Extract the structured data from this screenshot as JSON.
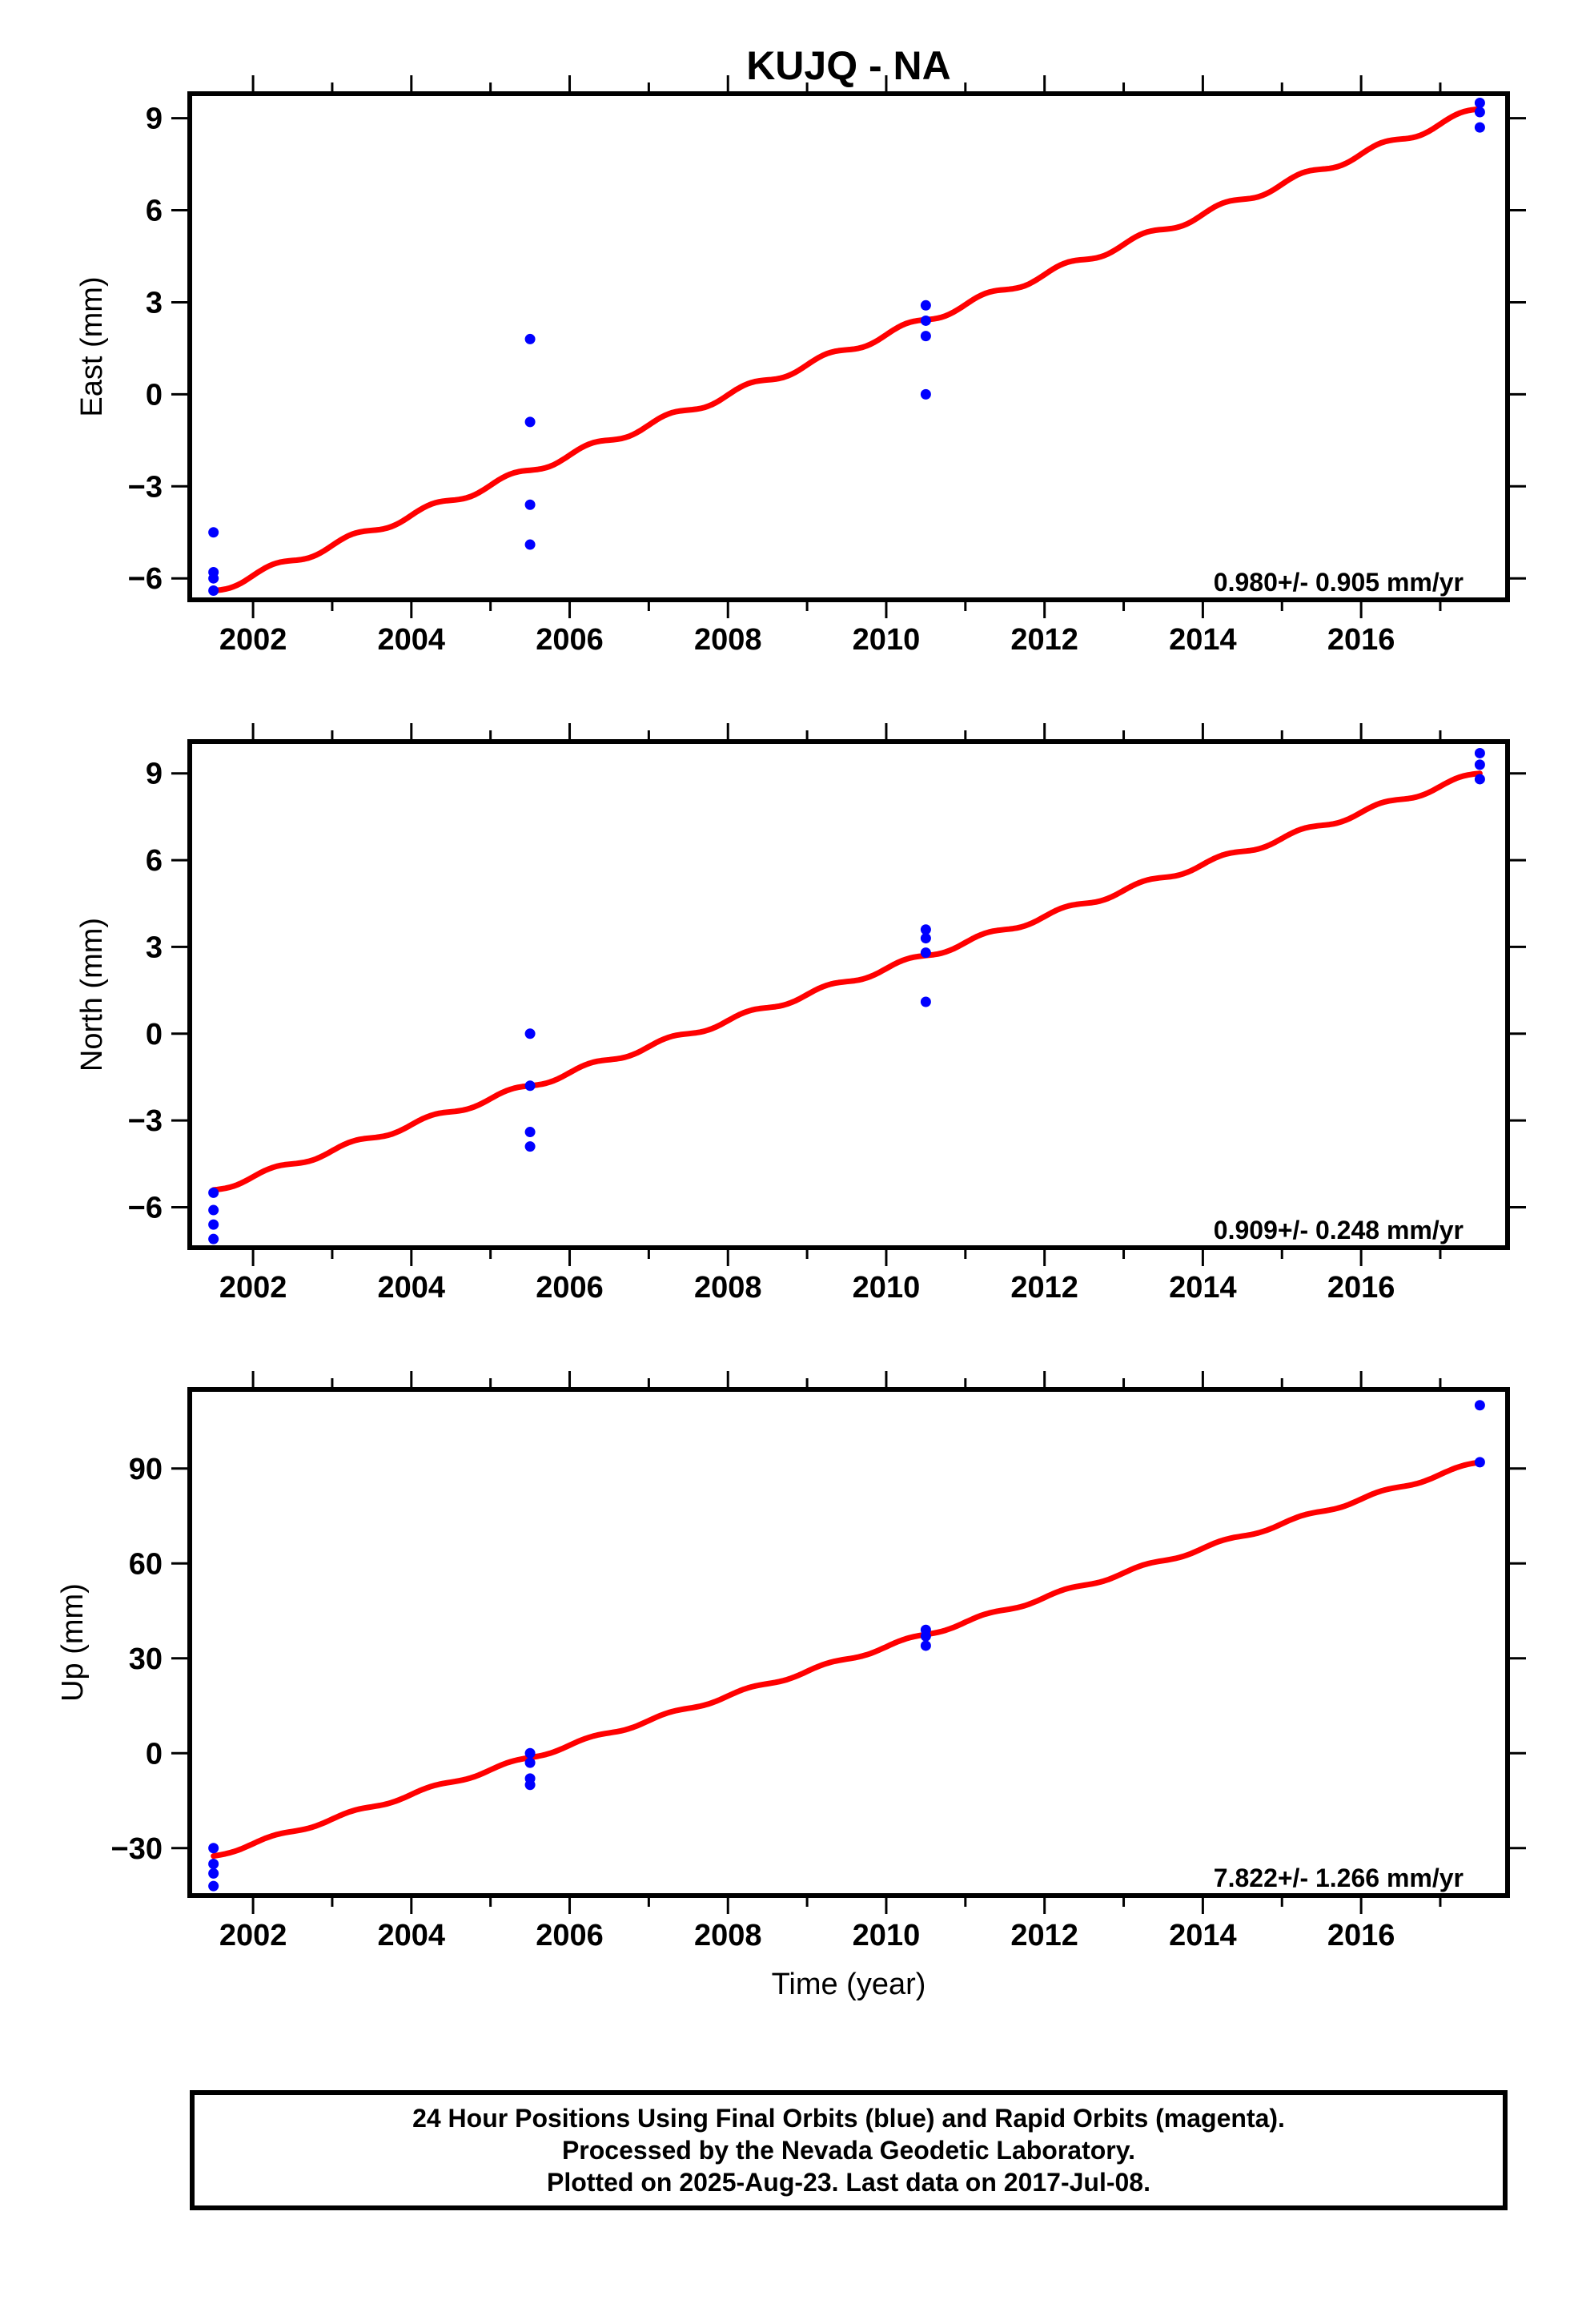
{
  "chart_data": [
    {
      "type": "scatter",
      "title": "KUJQ - NA",
      "ylabel": "East (mm)",
      "xlabel": "",
      "xlim": [
        2001.2,
        2017.85
      ],
      "ylim": [
        -6.7,
        9.8
      ],
      "xticks": [
        2002,
        2004,
        2006,
        2008,
        2010,
        2012,
        2014,
        2016
      ],
      "yticks": [
        -6,
        -3,
        0,
        3,
        6,
        9
      ],
      "ytick_labels": [
        "−6",
        "−3",
        "0",
        "3",
        "6",
        "9"
      ],
      "grid": false,
      "rate_label": "0.980+/- 0.905 mm/yr",
      "points_color": "#0000ff",
      "fit_color": "#ff0000",
      "points": [
        [
          2001.5,
          -4.5
        ],
        [
          2001.5,
          -5.8
        ],
        [
          2001.5,
          -6.0
        ],
        [
          2001.5,
          -6.4
        ],
        [
          2005.5,
          1.8
        ],
        [
          2005.5,
          -0.9
        ],
        [
          2005.5,
          -3.6
        ],
        [
          2005.5,
          -4.9
        ],
        [
          2010.5,
          2.9
        ],
        [
          2010.5,
          2.4
        ],
        [
          2010.5,
          1.9
        ],
        [
          2010.5,
          0.0
        ],
        [
          2017.5,
          9.5
        ],
        [
          2017.5,
          9.2
        ],
        [
          2017.5,
          8.7
        ]
      ],
      "fit": {
        "x": [
          2001.5,
          2017.5
        ],
        "y": [
          -6.4,
          9.3
        ],
        "seasonal_amplitude": 0.12
      }
    },
    {
      "type": "scatter",
      "title": "",
      "ylabel": "North (mm)",
      "xlabel": "",
      "xlim": [
        2001.2,
        2017.85
      ],
      "ylim": [
        -7.4,
        10.1
      ],
      "xticks": [
        2002,
        2004,
        2006,
        2008,
        2010,
        2012,
        2014,
        2016
      ],
      "yticks": [
        -6,
        -3,
        0,
        3,
        6,
        9
      ],
      "ytick_labels": [
        "−6",
        "−3",
        "0",
        "3",
        "6",
        "9"
      ],
      "grid": false,
      "rate_label": "0.909+/- 0.248 mm/yr",
      "points_color": "#0000ff",
      "fit_color": "#ff0000",
      "points": [
        [
          2001.5,
          -5.5
        ],
        [
          2001.5,
          -6.1
        ],
        [
          2001.5,
          -6.6
        ],
        [
          2001.5,
          -7.1
        ],
        [
          2005.5,
          0.0
        ],
        [
          2005.5,
          -1.8
        ],
        [
          2005.5,
          -3.4
        ],
        [
          2005.5,
          -3.9
        ],
        [
          2010.5,
          3.6
        ],
        [
          2010.5,
          3.3
        ],
        [
          2010.5,
          2.8
        ],
        [
          2010.5,
          1.1
        ],
        [
          2017.5,
          9.7
        ],
        [
          2017.5,
          9.3
        ],
        [
          2017.5,
          8.8
        ]
      ],
      "fit": {
        "x": [
          2001.5,
          2017.5
        ],
        "y": [
          -5.4,
          9.0
        ],
        "seasonal_amplitude": 0.1
      }
    },
    {
      "type": "scatter",
      "title": "",
      "ylabel": "Up (mm)",
      "xlabel": "Time (year)",
      "xlim": [
        2001.2,
        2017.85
      ],
      "ylim": [
        -45,
        115
      ],
      "xticks": [
        2002,
        2004,
        2006,
        2008,
        2010,
        2012,
        2014,
        2016
      ],
      "yticks": [
        -30,
        0,
        30,
        60,
        90
      ],
      "ytick_labels": [
        "−30",
        "0",
        "30",
        "60",
        "90"
      ],
      "grid": false,
      "rate_label": "7.822+/- 1.266 mm/yr",
      "points_color": "#0000ff",
      "fit_color": "#ff0000",
      "points": [
        [
          2001.5,
          -30
        ],
        [
          2001.5,
          -35
        ],
        [
          2001.5,
          -38
        ],
        [
          2001.5,
          -42
        ],
        [
          2005.5,
          0
        ],
        [
          2005.5,
          -3
        ],
        [
          2005.5,
          -8
        ],
        [
          2005.5,
          -10
        ],
        [
          2010.5,
          39
        ],
        [
          2010.5,
          37
        ],
        [
          2010.5,
          34
        ],
        [
          2017.5,
          110
        ],
        [
          2017.5,
          92
        ]
      ],
      "fit": {
        "x": [
          2001.5,
          2017.5
        ],
        "y": [
          -32.5,
          92.0
        ],
        "seasonal_amplitude": 0.6
      }
    }
  ],
  "footer": {
    "line1": "24 Hour Positions Using Final Orbits (blue) and Rapid Orbits (magenta).",
    "line2": "Processed by the Nevada Geodetic Laboratory.",
    "line3": "Plotted on 2025-Aug-23. Last data on 2017-Jul-08."
  }
}
